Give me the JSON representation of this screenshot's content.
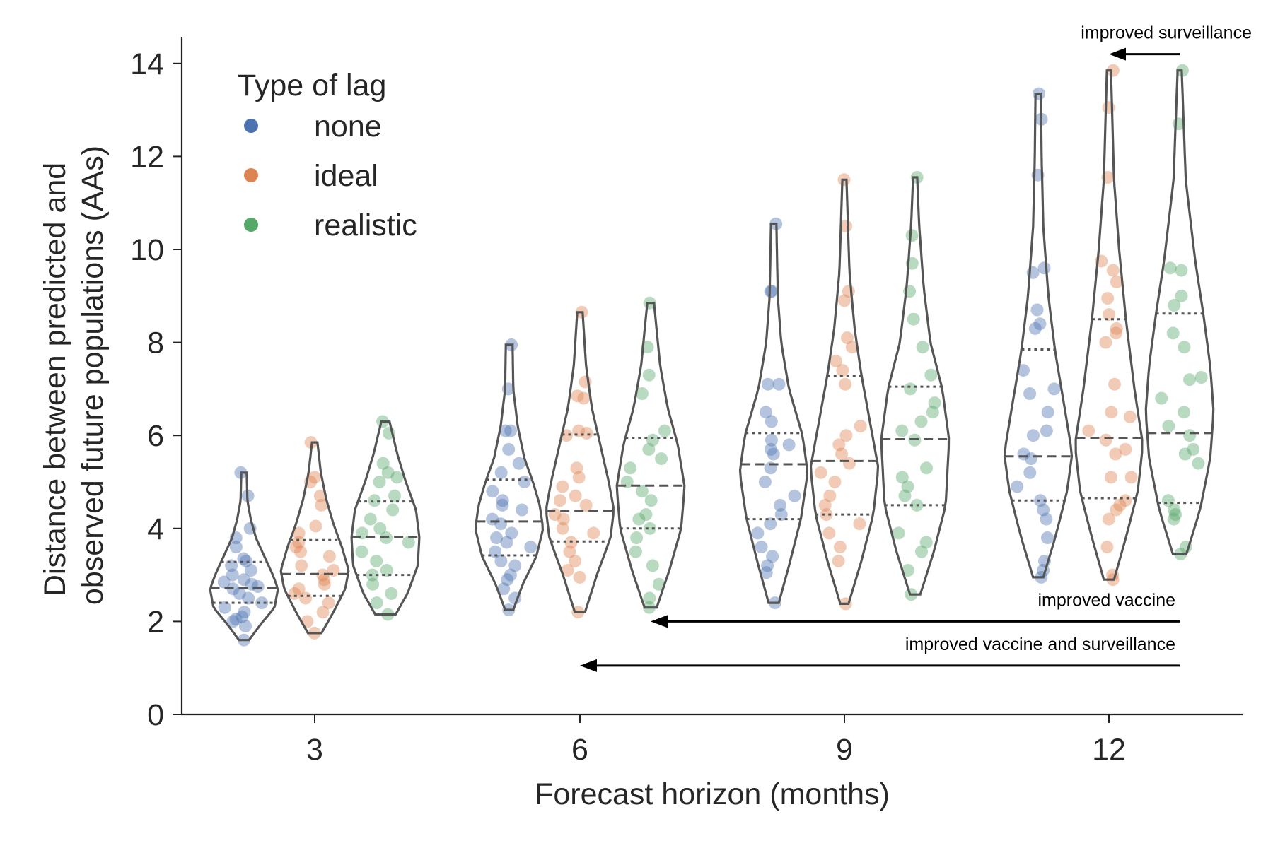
{
  "chart_data": {
    "type": "violin",
    "xlabel": "Forecast horizon (months)",
    "ylabel_lines": [
      "Distance between predicted and",
      "observed future populations (AAs)"
    ],
    "ylim": [
      0,
      14.5
    ],
    "yticks": [
      0,
      2,
      4,
      6,
      8,
      10,
      12,
      14
    ],
    "categories": [
      "3",
      "6",
      "9",
      "12"
    ],
    "legend": {
      "title": "Type of lag",
      "placement": "top-left",
      "entries": [
        "none",
        "ideal",
        "realistic"
      ]
    },
    "colors": {
      "none": "#4c72b0",
      "ideal": "#dd8452",
      "realistic": "#55a868",
      "violin": "#555555"
    },
    "series": [
      {
        "name": "none",
        "groups": [
          {
            "horizon": "3",
            "min": 1.6,
            "max": 5.2,
            "q1": 2.4,
            "median": 2.72,
            "q3": 3.28,
            "profile": [
              [
                1.6,
                0.15
              ],
              [
                1.9,
                0.45
              ],
              [
                2.3,
                0.9
              ],
              [
                2.7,
                1.0
              ],
              [
                3.0,
                0.85
              ],
              [
                3.4,
                0.6
              ],
              [
                3.8,
                0.35
              ],
              [
                4.2,
                0.2
              ],
              [
                4.6,
                0.1
              ],
              [
                5.2,
                0.08
              ]
            ],
            "points": [
              1.6,
              1.9,
              2.0,
              2.05,
              2.1,
              2.2,
              2.3,
              2.4,
              2.5,
              2.6,
              2.7,
              2.75,
              2.8,
              2.85,
              2.9,
              3.0,
              3.1,
              3.2,
              3.3,
              3.35,
              3.6,
              3.8,
              4.0,
              4.7,
              5.2
            ]
          },
          {
            "horizon": "6",
            "min": 2.25,
            "max": 7.95,
            "q1": 3.42,
            "median": 4.15,
            "q3": 5.05,
            "profile": [
              [
                2.25,
                0.12
              ],
              [
                2.8,
                0.4
              ],
              [
                3.4,
                0.8
              ],
              [
                4.0,
                1.0
              ],
              [
                4.5,
                0.9
              ],
              [
                5.0,
                0.7
              ],
              [
                5.5,
                0.45
              ],
              [
                6.2,
                0.25
              ],
              [
                7.0,
                0.12
              ],
              [
                7.95,
                0.1
              ]
            ],
            "points": [
              2.25,
              2.5,
              2.7,
              2.9,
              3.0,
              3.2,
              3.3,
              3.5,
              3.6,
              3.7,
              3.8,
              3.9,
              4.1,
              4.2,
              4.4,
              4.5,
              4.6,
              4.8,
              5.0,
              5.2,
              5.4,
              5.7,
              6.1,
              6.1,
              7.0,
              7.95
            ]
          },
          {
            "horizon": "9",
            "min": 2.4,
            "max": 10.55,
            "q1": 4.2,
            "median": 5.38,
            "q3": 6.05,
            "profile": [
              [
                2.4,
                0.15
              ],
              [
                3.2,
                0.45
              ],
              [
                4.2,
                0.8
              ],
              [
                5.2,
                1.0
              ],
              [
                6.0,
                0.85
              ],
              [
                7.0,
                0.45
              ],
              [
                8.0,
                0.22
              ],
              [
                9.0,
                0.12
              ],
              [
                10.55,
                0.08
              ]
            ],
            "points": [
              2.4,
              3.05,
              3.2,
              3.4,
              3.6,
              3.9,
              4.1,
              4.3,
              4.5,
              4.7,
              5.0,
              5.3,
              5.6,
              5.7,
              5.8,
              5.9,
              6.3,
              6.5,
              7.1,
              7.1,
              9.1,
              9.1,
              10.55
            ]
          },
          {
            "horizon": "12",
            "min": 2.95,
            "max": 13.35,
            "q1": 4.6,
            "median": 5.55,
            "q3": 7.85,
            "profile": [
              [
                2.95,
                0.15
              ],
              [
                3.8,
                0.5
              ],
              [
                4.8,
                0.85
              ],
              [
                5.6,
                1.0
              ],
              [
                6.5,
                0.8
              ],
              [
                7.8,
                0.5
              ],
              [
                9.0,
                0.3
              ],
              [
                10.5,
                0.15
              ],
              [
                12.0,
                0.1
              ],
              [
                13.35,
                0.08
              ]
            ],
            "points": [
              2.95,
              3.1,
              3.3,
              3.8,
              4.2,
              4.4,
              4.6,
              4.9,
              5.2,
              5.5,
              5.6,
              6.0,
              6.1,
              6.5,
              6.9,
              7.0,
              7.4,
              8.3,
              8.4,
              8.7,
              9.5,
              9.6,
              11.6,
              12.8,
              13.35
            ]
          }
        ]
      },
      {
        "name": "ideal",
        "groups": [
          {
            "horizon": "3",
            "min": 1.75,
            "max": 5.85,
            "q1": 2.55,
            "median": 3.02,
            "q3": 3.75,
            "profile": [
              [
                1.75,
                0.2
              ],
              [
                2.2,
                0.55
              ],
              [
                2.7,
                0.9
              ],
              [
                3.1,
                1.0
              ],
              [
                3.6,
                0.8
              ],
              [
                4.1,
                0.55
              ],
              [
                4.6,
                0.35
              ],
              [
                5.2,
                0.18
              ],
              [
                5.85,
                0.08
              ]
            ],
            "points": [
              1.75,
              2.0,
              2.2,
              2.4,
              2.5,
              2.6,
              2.7,
              2.8,
              2.9,
              3.0,
              3.1,
              3.2,
              3.4,
              3.5,
              3.6,
              3.7,
              3.9,
              4.05,
              4.5,
              4.7,
              5.0,
              5.1,
              5.85
            ]
          },
          {
            "horizon": "6",
            "min": 2.2,
            "max": 8.65,
            "q1": 3.72,
            "median": 4.38,
            "q3": 6.02,
            "profile": [
              [
                2.2,
                0.15
              ],
              [
                3.0,
                0.5
              ],
              [
                3.8,
                0.9
              ],
              [
                4.4,
                1.0
              ],
              [
                5.0,
                0.85
              ],
              [
                5.8,
                0.6
              ],
              [
                6.6,
                0.35
              ],
              [
                7.5,
                0.18
              ],
              [
                8.65,
                0.08
              ]
            ],
            "points": [
              2.2,
              2.95,
              3.1,
              3.3,
              3.5,
              3.7,
              3.9,
              4.0,
              4.2,
              4.3,
              4.5,
              4.6,
              4.7,
              4.9,
              5.1,
              5.3,
              6.0,
              6.05,
              6.1,
              6.8,
              6.85,
              7.15,
              8.65
            ]
          },
          {
            "horizon": "9",
            "min": 2.38,
            "max": 11.5,
            "q1": 4.3,
            "median": 5.45,
            "q3": 7.28,
            "profile": [
              [
                2.38,
                0.12
              ],
              [
                3.3,
                0.5
              ],
              [
                4.3,
                0.85
              ],
              [
                5.3,
                1.0
              ],
              [
                6.3,
                0.75
              ],
              [
                7.3,
                0.5
              ],
              [
                8.3,
                0.3
              ],
              [
                9.5,
                0.15
              ],
              [
                11.5,
                0.06
              ]
            ],
            "points": [
              2.38,
              3.3,
              3.6,
              3.9,
              4.1,
              4.3,
              4.5,
              4.7,
              5.0,
              5.2,
              5.4,
              5.6,
              5.8,
              6.0,
              6.2,
              7.1,
              7.4,
              7.6,
              7.9,
              8.1,
              8.9,
              9.1,
              10.5,
              11.5
            ]
          },
          {
            "horizon": "12",
            "min": 2.9,
            "max": 13.85,
            "q1": 4.65,
            "median": 5.95,
            "q3": 8.5,
            "profile": [
              [
                2.9,
                0.15
              ],
              [
                3.8,
                0.5
              ],
              [
                4.8,
                0.85
              ],
              [
                5.8,
                1.0
              ],
              [
                7.0,
                0.75
              ],
              [
                8.5,
                0.5
              ],
              [
                10.0,
                0.3
              ],
              [
                11.5,
                0.15
              ],
              [
                13.85,
                0.06
              ]
            ],
            "points": [
              2.9,
              3.0,
              3.6,
              4.2,
              4.4,
              4.5,
              4.6,
              5.1,
              5.1,
              5.6,
              5.7,
              5.9,
              6.1,
              6.4,
              6.5,
              7.1,
              8.0,
              8.2,
              8.3,
              8.6,
              8.95,
              9.3,
              9.55,
              9.75,
              11.55,
              13.05,
              13.85
            ]
          }
        ]
      },
      {
        "name": "realistic",
        "groups": [
          {
            "horizon": "3",
            "min": 2.15,
            "max": 6.3,
            "q1": 3.0,
            "median": 3.82,
            "q3": 4.58,
            "profile": [
              [
                2.15,
                0.3
              ],
              [
                2.6,
                0.65
              ],
              [
                3.2,
                0.95
              ],
              [
                3.8,
                1.0
              ],
              [
                4.4,
                0.9
              ],
              [
                5.0,
                0.6
              ],
              [
                5.6,
                0.35
              ],
              [
                6.3,
                0.12
              ]
            ],
            "points": [
              2.15,
              2.4,
              2.6,
              2.8,
              3.0,
              3.1,
              3.3,
              3.5,
              3.7,
              3.8,
              3.9,
              4.0,
              4.2,
              4.4,
              4.6,
              4.7,
              5.0,
              5.1,
              5.2,
              5.4,
              6.05,
              6.3
            ]
          },
          {
            "horizon": "6",
            "min": 2.3,
            "max": 8.85,
            "q1": 4.0,
            "median": 4.92,
            "q3": 5.95,
            "profile": [
              [
                2.3,
                0.18
              ],
              [
                3.1,
                0.55
              ],
              [
                4.0,
                0.9
              ],
              [
                4.9,
                1.0
              ],
              [
                5.8,
                0.8
              ],
              [
                6.6,
                0.5
              ],
              [
                7.5,
                0.28
              ],
              [
                8.85,
                0.1
              ]
            ],
            "points": [
              2.3,
              2.5,
              2.8,
              3.2,
              3.5,
              3.8,
              4.0,
              4.2,
              4.3,
              4.6,
              4.8,
              5.0,
              5.3,
              5.5,
              5.7,
              5.9,
              6.1,
              6.9,
              7.3,
              7.9,
              8.85
            ]
          },
          {
            "horizon": "9",
            "min": 2.58,
            "max": 11.55,
            "q1": 4.5,
            "median": 5.92,
            "q3": 7.05,
            "profile": [
              [
                2.58,
                0.15
              ],
              [
                3.5,
                0.55
              ],
              [
                4.5,
                0.9
              ],
              [
                5.9,
                1.0
              ],
              [
                7.0,
                0.8
              ],
              [
                8.0,
                0.45
              ],
              [
                9.2,
                0.25
              ],
              [
                10.5,
                0.12
              ],
              [
                11.55,
                0.06
              ]
            ],
            "points": [
              2.58,
              3.1,
              3.5,
              3.7,
              3.9,
              4.5,
              4.7,
              4.9,
              5.1,
              5.3,
              5.9,
              6.1,
              6.3,
              6.5,
              6.7,
              7.0,
              7.3,
              7.9,
              8.5,
              9.1,
              9.7,
              10.3,
              11.55
            ]
          },
          {
            "horizon": "12",
            "min": 3.45,
            "max": 13.85,
            "q1": 4.55,
            "median": 6.05,
            "q3": 8.62,
            "profile": [
              [
                3.45,
                0.2
              ],
              [
                4.4,
                0.6
              ],
              [
                5.5,
                0.9
              ],
              [
                6.5,
                1.0
              ],
              [
                7.5,
                0.9
              ],
              [
                8.6,
                0.7
              ],
              [
                9.8,
                0.45
              ],
              [
                11.5,
                0.18
              ],
              [
                13.85,
                0.06
              ]
            ],
            "points": [
              3.45,
              3.6,
              4.2,
              4.3,
              4.4,
              4.6,
              5.4,
              5.6,
              5.7,
              6.0,
              6.2,
              6.5,
              6.8,
              7.2,
              7.25,
              7.9,
              8.2,
              8.8,
              9.0,
              9.55,
              9.6,
              12.7,
              13.85
            ]
          }
        ]
      }
    ],
    "annotations": [
      {
        "text": "improved surveillance",
        "from_x": "12-realistic",
        "to_x": "12-ideal",
        "y": 14.2
      },
      {
        "text": "improved vaccine",
        "from_x": "12-realistic",
        "to_x": "6-realistic",
        "y": 2.0
      },
      {
        "text": "improved vaccine and surveillance",
        "from_x": "12-realistic",
        "to_x": "6-ideal",
        "y": 1.05
      }
    ]
  }
}
